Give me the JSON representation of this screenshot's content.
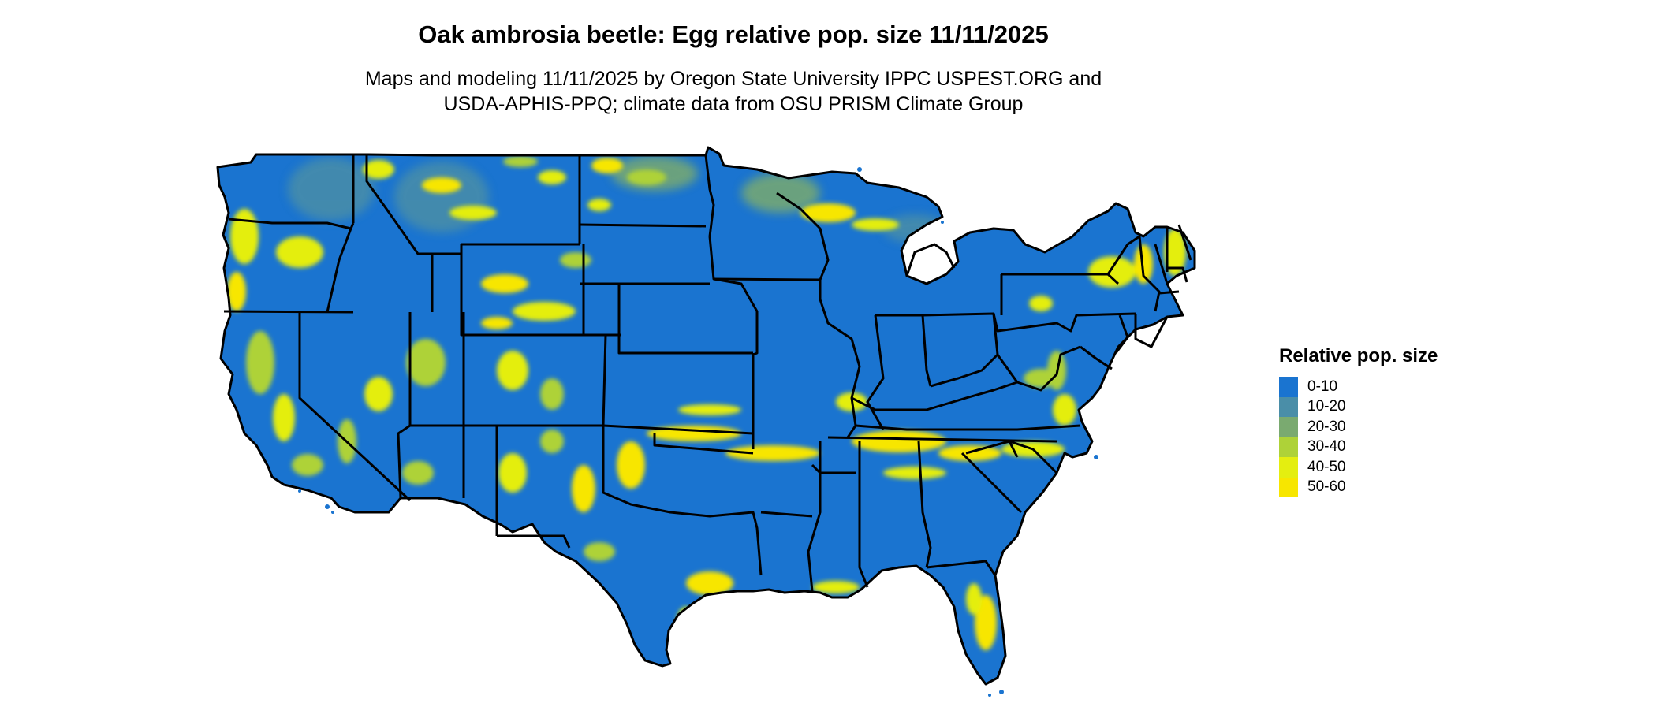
{
  "map": {
    "title": "Oak ambrosia beetle: Egg relative pop. size 11/11/2025",
    "subtitle_line1": "Maps and modeling 11/11/2025 by Oregon State University IPPC USPEST.ORG and",
    "subtitle_line2": "USDA-APHIS-PPQ; climate data from OSU PRISM Climate Group",
    "region": "Contiguous United States",
    "base_color": "#1a74d0",
    "border_color": "#000000",
    "hotspot_colors": [
      "#4a8ea8",
      "#7aaa70",
      "#aed238",
      "#e4ee10",
      "#f7e600"
    ]
  },
  "legend": {
    "title": "Relative pop. size",
    "items": [
      {
        "label": "0-10",
        "color": "#1a74d0"
      },
      {
        "label": "10-20",
        "color": "#4a8ea8"
      },
      {
        "label": "20-30",
        "color": "#7aaa70"
      },
      {
        "label": "30-40",
        "color": "#aed238"
      },
      {
        "label": "40-50",
        "color": "#e4ee10"
      },
      {
        "label": "50-60",
        "color": "#f7e600"
      }
    ]
  }
}
